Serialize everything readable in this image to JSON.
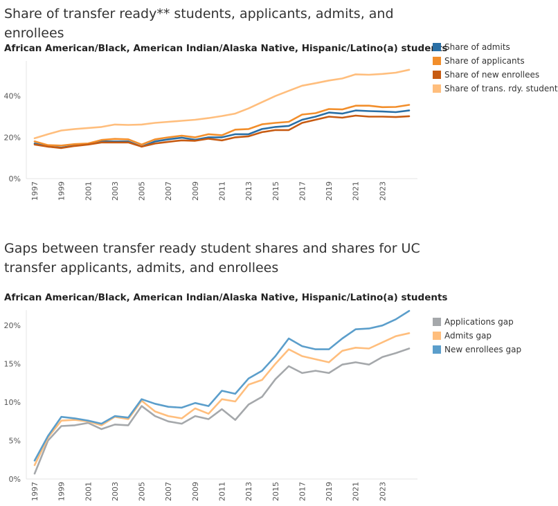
{
  "chart_data": [
    {
      "type": "line",
      "title": "Share of transfer ready** students, applicants, admits, and enrollees",
      "subtitle": "African American/Black, American Indian/Alaska Native, Hispanic/Latino(a) students",
      "x": [
        1997,
        1998,
        1999,
        2000,
        2001,
        2002,
        2003,
        2004,
        2005,
        2006,
        2007,
        2008,
        2009,
        2010,
        2011,
        2012,
        2013,
        2014,
        2015,
        2016,
        2017,
        2018,
        2019,
        2020,
        2021,
        2022,
        2023,
        2024,
        2025
      ],
      "x_tick_labels": [
        "1997",
        "1999",
        "2001",
        "2003",
        "2005",
        "2007",
        "2009",
        "2011",
        "2013",
        "2015",
        "2017",
        "2019",
        "2021",
        "2023"
      ],
      "y_tick_labels": [
        "0%",
        "20%",
        "40%"
      ],
      "ylim": [
        0,
        57
      ],
      "grid": false,
      "legend_position": "right",
      "series": [
        {
          "name": "Share of admits",
          "color": "#2a6fa5",
          "values": [
            17.0,
            15.5,
            15.0,
            16.0,
            16.8,
            18.0,
            18.0,
            18.0,
            15.5,
            18.0,
            19.0,
            19.8,
            18.8,
            20.0,
            20.0,
            21.5,
            21.5,
            24.0,
            25.0,
            25.5,
            28.5,
            30.0,
            32.0,
            31.5,
            33.0,
            32.7,
            32.5,
            32.2,
            33.0
          ]
        },
        {
          "name": "Share of applicants",
          "color": "#f28e2b",
          "values": [
            18.0,
            16.2,
            16.0,
            16.7,
            17.0,
            18.7,
            19.2,
            19.0,
            16.5,
            19.0,
            20.0,
            20.8,
            20.0,
            21.5,
            21.0,
            23.7,
            24.0,
            26.3,
            27.0,
            27.5,
            31.0,
            31.7,
            33.7,
            33.5,
            35.3,
            35.3,
            34.6,
            34.7,
            35.7
          ]
        },
        {
          "name": "Share of new enrollees",
          "color": "#c75b12",
          "values": [
            16.5,
            15.5,
            14.8,
            15.8,
            16.5,
            17.5,
            17.5,
            17.5,
            15.5,
            17.0,
            17.8,
            18.5,
            18.3,
            19.3,
            18.5,
            20.0,
            20.5,
            22.5,
            23.5,
            23.5,
            27.0,
            28.5,
            30.0,
            29.5,
            30.5,
            30.0,
            30.0,
            29.8,
            30.2
          ]
        },
        {
          "name": "Share of trans. rdy. students",
          "color": "#ffbe7d",
          "values": [
            19.5,
            21.5,
            23.3,
            24.0,
            24.5,
            25.0,
            26.2,
            26.0,
            26.2,
            27.0,
            27.5,
            28.0,
            28.5,
            29.3,
            30.3,
            31.5,
            34.0,
            37.0,
            40.0,
            42.5,
            45.0,
            46.2,
            47.5,
            48.5,
            50.5,
            50.3,
            50.7,
            51.3,
            52.7
          ]
        }
      ]
    },
    {
      "type": "line",
      "title": "Gaps between transfer ready student shares and shares for UC transfer applicants, admits, and enrollees",
      "subtitle": "African American/Black, American Indian/Alaska Native, Hispanic/Latino(a) students",
      "x": [
        1997,
        1998,
        1999,
        2000,
        2001,
        2002,
        2003,
        2004,
        2005,
        2006,
        2007,
        2008,
        2009,
        2010,
        2011,
        2012,
        2013,
        2014,
        2015,
        2016,
        2017,
        2018,
        2019,
        2020,
        2021,
        2022,
        2023,
        2024,
        2025
      ],
      "x_tick_labels": [
        "1997",
        "1999",
        "2001",
        "2003",
        "2005",
        "2007",
        "2009",
        "2011",
        "2013",
        "2015",
        "2017",
        "2019",
        "2021",
        "2023"
      ],
      "y_tick_labels": [
        "0%",
        "5%",
        "10%",
        "15%",
        "20%"
      ],
      "ylim": [
        0,
        22
      ],
      "grid": false,
      "legend_position": "right",
      "series": [
        {
          "name": "Applications gap",
          "color": "#a5a8ab",
          "values": [
            0.7,
            5.0,
            6.9,
            7.0,
            7.3,
            6.5,
            7.1,
            7.0,
            9.5,
            8.2,
            7.5,
            7.2,
            8.2,
            7.8,
            9.1,
            7.7,
            9.7,
            10.7,
            13.0,
            14.7,
            13.8,
            14.1,
            13.8,
            14.9,
            15.2,
            14.9,
            15.9,
            16.4,
            17.0
          ]
        },
        {
          "name": "Admits gap",
          "color": "#ffbe7d",
          "values": [
            1.8,
            5.4,
            7.6,
            7.7,
            7.5,
            7.0,
            8.1,
            7.8,
            10.2,
            8.8,
            8.2,
            7.9,
            9.2,
            8.5,
            10.4,
            10.1,
            12.3,
            12.9,
            15.0,
            16.9,
            16.0,
            15.6,
            15.2,
            16.7,
            17.1,
            17.0,
            17.8,
            18.6,
            19.0
          ]
        },
        {
          "name": "New enrollees gap",
          "color": "#5b9ecb",
          "values": [
            2.4,
            5.6,
            8.1,
            7.9,
            7.6,
            7.2,
            8.2,
            8.0,
            10.4,
            9.8,
            9.4,
            9.3,
            9.9,
            9.5,
            11.5,
            11.1,
            13.1,
            14.1,
            16.0,
            18.3,
            17.3,
            16.9,
            16.9,
            18.3,
            19.5,
            19.6,
            20.0,
            20.8,
            21.9
          ]
        }
      ]
    }
  ]
}
